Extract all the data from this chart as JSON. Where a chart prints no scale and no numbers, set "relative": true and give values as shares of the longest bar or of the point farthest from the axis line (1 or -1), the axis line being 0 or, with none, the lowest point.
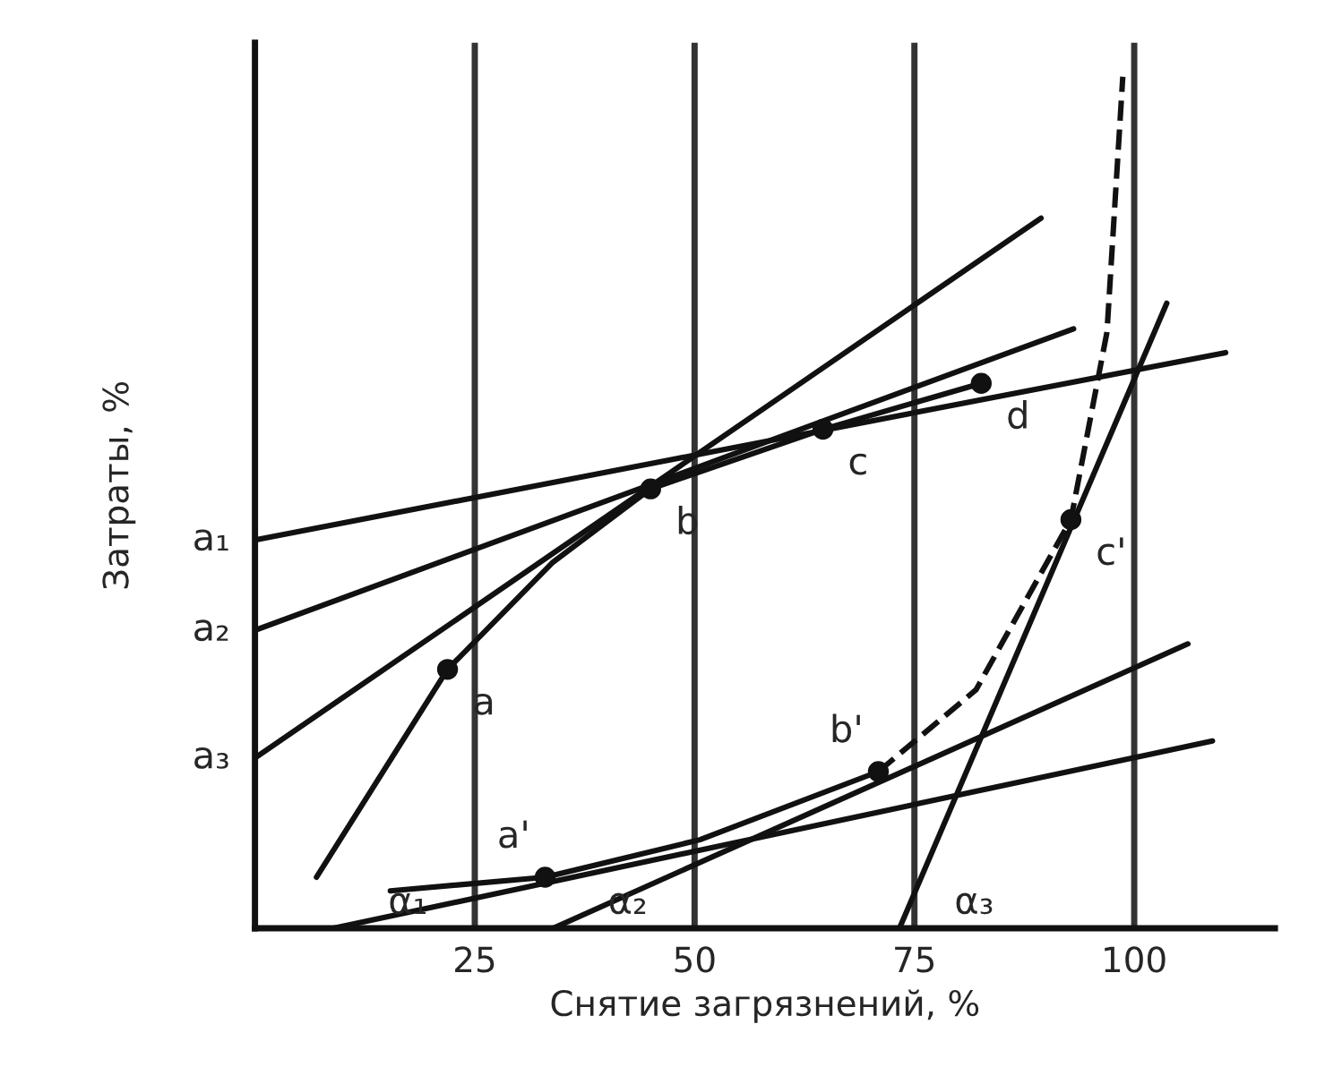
{
  "chart_data": {
    "type": "line",
    "xlabel": "Снятие загрязнений, %",
    "ylabel": "Затраты, %",
    "relative": true,
    "xlim": [
      0,
      116
    ],
    "xticks": [
      25,
      50,
      75,
      100
    ],
    "grid": "x",
    "legend": false,
    "series": [
      {
        "color": "#111111",
        "line_style": "solid",
        "x": [
          7.0,
          21.9,
          33.9,
          45.0,
          64.6,
          82.6
        ],
        "values": [
          0.06,
          0.304,
          0.43,
          0.516,
          0.586,
          0.64
        ]
      },
      {
        "color": "#111111",
        "line_style": "solid",
        "x": [
          0,
          110.4
        ],
        "values": [
          0.456,
          0.676
        ]
      },
      {
        "color": "#111111",
        "line_style": "solid",
        "x": [
          0,
          93.1
        ],
        "values": [
          0.35,
          0.704
        ]
      },
      {
        "color": "#111111",
        "line_style": "solid",
        "x": [
          0,
          89.4
        ],
        "values": [
          0.2,
          0.834
        ]
      },
      {
        "color": "#111111",
        "line_style": "solid",
        "x": [
          15.4,
          33.0,
          50.6,
          70.9
        ],
        "values": [
          0.044,
          0.06,
          0.104,
          0.184
        ]
      },
      {
        "color": "#111111",
        "line_style": "dashed",
        "x": [
          70.9,
          82.0,
          92.8,
          96.9,
          98.7
        ],
        "values": [
          0.184,
          0.28,
          0.48,
          0.7,
          1.0
        ]
      },
      {
        "color": "#111111",
        "line_style": "solid",
        "x": [
          8.9,
          108.9
        ],
        "values": [
          0,
          0.22
        ]
      },
      {
        "color": "#111111",
        "line_style": "solid",
        "x": [
          33.9,
          106.1
        ],
        "values": [
          0,
          0.334
        ]
      },
      {
        "color": "#111111",
        "line_style": "solid",
        "x": [
          73.3,
          103.7
        ],
        "values": [
          0,
          0.734
        ]
      },
      {
        "type": "scatter",
        "color": "#111111",
        "marker": "circle",
        "x": [
          21.9,
          45.0,
          64.6,
          82.6,
          33.0,
          70.9,
          92.8
        ],
        "values": [
          0.304,
          0.516,
          0.586,
          0.64,
          0.06,
          0.184,
          0.48
        ]
      }
    ],
    "annotations": [
      {
        "text": "a",
        "x": 21.9,
        "y": 0.304
      },
      {
        "text": "b",
        "x": 45.0,
        "y": 0.516
      },
      {
        "text": "c",
        "x": 64.6,
        "y": 0.586
      },
      {
        "text": "d",
        "x": 82.6,
        "y": 0.64
      },
      {
        "text": "a'",
        "x": 33.0,
        "y": 0.06
      },
      {
        "text": "b'",
        "x": 70.9,
        "y": 0.184
      },
      {
        "text": "c'",
        "x": 92.8,
        "y": 0.48
      },
      {
        "text": "a₁",
        "x": 0,
        "y": 0.456
      },
      {
        "text": "a₂",
        "x": 0,
        "y": 0.35
      },
      {
        "text": "a₃",
        "x": 0,
        "y": 0.2
      },
      {
        "text": "α₁",
        "x": 8.9,
        "y": 0
      },
      {
        "text": "α₂",
        "x": 33.9,
        "y": 0
      },
      {
        "text": "α₃",
        "x": 73.3,
        "y": 0
      }
    ]
  }
}
